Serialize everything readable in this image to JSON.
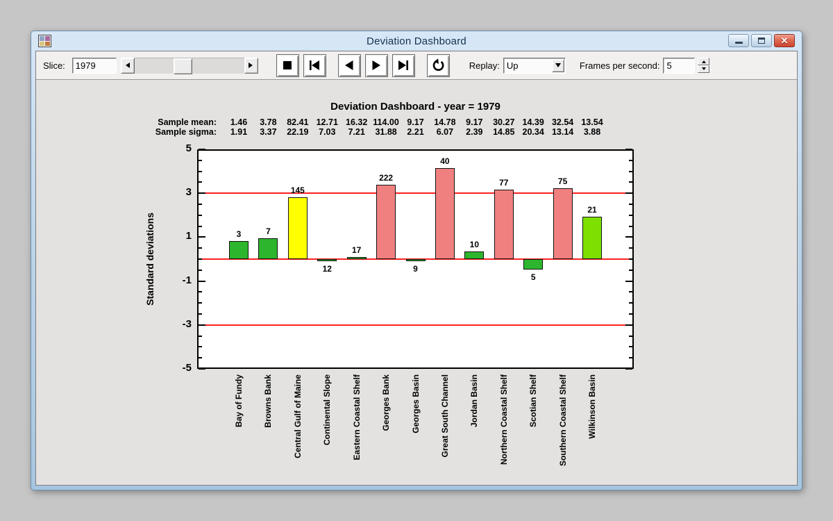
{
  "window": {
    "title": "Deviation Dashboard"
  },
  "toolbar": {
    "slice_label": "Slice:",
    "slice_value": "1979",
    "replay_label": "Replay:",
    "replay_value": "Up",
    "fps_label": "Frames per second:",
    "fps_value": "5"
  },
  "chart_data": {
    "type": "bar",
    "title": "Deviation Dashboard - year = 1979",
    "ylabel": "Standard deviations",
    "ylim": [
      -5,
      5
    ],
    "ytick_interval": 0.5,
    "ytick_labeled": [
      5,
      3,
      1,
      -1,
      -3,
      -5
    ],
    "reference_lines": [
      3,
      0,
      -3
    ],
    "reference_color": "#ff2222",
    "sample_mean_label": "Sample mean:",
    "sample_sigma_label": "Sample sigma:",
    "sample_mean": [
      "1.46",
      "3.78",
      "82.41",
      "12.71",
      "16.32",
      "114.00",
      "9.17",
      "14.78",
      "9.17",
      "30.27",
      "14.39",
      "32.54",
      "13.54"
    ],
    "sample_sigma": [
      "1.91",
      "3.37",
      "22.19",
      "7.03",
      "7.21",
      "31.88",
      "2.21",
      "6.07",
      "2.39",
      "14.85",
      "20.34",
      "13.14",
      "3.88"
    ],
    "categories": [
      "Bay of Fundy",
      "Browns Bank",
      "Central Gulf of Maine",
      "Continental Slope",
      "Eastern Coastal Shelf",
      "Georges Bank",
      "Georges Basin",
      "Great South Channel",
      "Jordan Basin",
      "Northern Coastal Shelf",
      "Scotian Shelf",
      "Southern Coastal Shelf",
      "Wilkinson Basin"
    ],
    "bar_labels": [
      "3",
      "7",
      "145",
      "12",
      "17",
      "222",
      "9",
      "40",
      "10",
      "77",
      "5",
      "75",
      "21"
    ],
    "values": [
      0.81,
      0.96,
      2.82,
      -0.1,
      0.09,
      3.39,
      -0.08,
      4.15,
      0.35,
      3.15,
      -0.46,
      3.23,
      1.92
    ],
    "bar_colors": [
      "#2db52d",
      "#2db52d",
      "#ffff00",
      "#2db52d",
      "#2db52d",
      "#f08080",
      "#2db52d",
      "#f08080",
      "#2db52d",
      "#f08080",
      "#2db52d",
      "#f08080",
      "#7de000"
    ],
    "palette": {
      "green": "#2db52d",
      "lime": "#7de000",
      "yellow": "#ffff00",
      "salmon": "#f08080"
    }
  }
}
